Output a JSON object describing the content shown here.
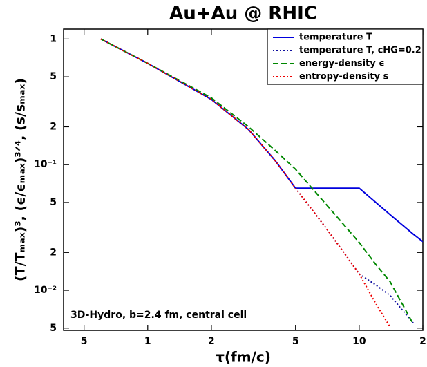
{
  "chart_data": {
    "type": "line",
    "title": "Au+Au @ RHIC",
    "xlabel": "τ(fm/c)",
    "ylabel": "(T/Tₘₐₓ)³, (ϵ/ϵₘₐₓ)³ᐟ⁴, (s/sₘₐₓ)",
    "annotation": "3D-Hydro, b=2.4 fm, central cell",
    "xscale": "log",
    "yscale": "log",
    "xlim": [
      0.4,
      20
    ],
    "ylim": [
      0.0048,
      1.2
    ],
    "xticks": [
      {
        "value": 0.5,
        "label": "5"
      },
      1,
      2,
      5,
      10,
      {
        "value": 20,
        "label": "2"
      }
    ],
    "yticks": [
      1,
      {
        "value": 0.5,
        "label": "5"
      },
      {
        "value": 0.2,
        "label": "2"
      },
      {
        "value": 0.1,
        "label": "10⁻¹"
      },
      {
        "value": 0.05,
        "label": "5"
      },
      {
        "value": 0.02,
        "label": "2"
      },
      {
        "value": 0.01,
        "label": "10⁻²"
      },
      {
        "value": 0.005,
        "label": "5"
      }
    ],
    "legend": "upper right",
    "x": [
      0.6,
      1,
      2,
      3,
      4,
      5,
      7,
      10,
      12,
      14,
      18,
      20
    ],
    "series": [
      {
        "name": "temperature T",
        "color": "#0000dd",
        "style": "solid",
        "values": [
          1,
          0.64,
          0.33,
          0.19,
          0.108,
          0.065,
          0.065,
          0.065,
          0.05,
          0.04,
          0.028,
          0.0244
        ]
      },
      {
        "name": "temperature T, cHG=0.2",
        "color": "#1010a0",
        "style": "dotted",
        "values": [
          1,
          0.64,
          0.33,
          0.19,
          0.108,
          0.065,
          0.031,
          0.0135,
          0.011,
          0.0091,
          0.0055,
          null
        ]
      },
      {
        "name": "energy-density ϵ",
        "color": "#008800",
        "style": "dashed",
        "values": [
          1,
          0.64,
          0.34,
          0.2,
          0.13,
          0.092,
          0.048,
          0.024,
          0.016,
          0.0117,
          0.0054,
          null
        ]
      },
      {
        "name": "entropy-density s",
        "color": "#ee0000",
        "style": "dotted",
        "values": [
          1,
          0.64,
          0.33,
          0.19,
          0.108,
          0.065,
          0.031,
          0.0135,
          0.0078,
          0.0051,
          null,
          null
        ]
      }
    ]
  }
}
